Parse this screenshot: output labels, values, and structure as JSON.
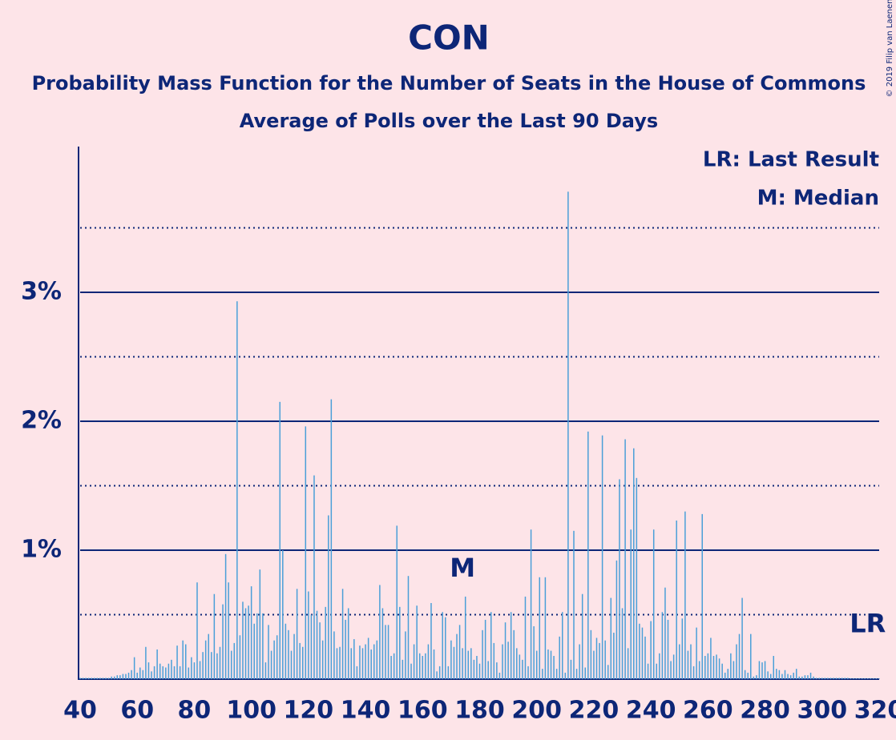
{
  "chart_data": {
    "type": "bar",
    "title": "CON",
    "subtitle": "Probability Mass Function for the Number of Seats in the House of Commons",
    "subtitle2": "Average of Polls over the Last 90 Days",
    "legend": [
      "LR: Last Result",
      "M: Median"
    ],
    "copyright": "© 2019 Filip van Laenen",
    "color": "#4a9fd8",
    "x": [
      40,
      41,
      42,
      43,
      44,
      45,
      46,
      47,
      48,
      49,
      50,
      51,
      52,
      53,
      54,
      55,
      56,
      57,
      58,
      59,
      60,
      61,
      62,
      63,
      64,
      65,
      66,
      67,
      68,
      69,
      70,
      71,
      72,
      73,
      74,
      75,
      76,
      77,
      78,
      79,
      80,
      81,
      82,
      83,
      84,
      85,
      86,
      87,
      88,
      89,
      90,
      91,
      92,
      93,
      94,
      95,
      96,
      97,
      98,
      99,
      100,
      101,
      102,
      103,
      104,
      105,
      106,
      107,
      108,
      109,
      110,
      111,
      112,
      113,
      114,
      115,
      116,
      117,
      118,
      119,
      120,
      121,
      122,
      123,
      124,
      125,
      126,
      127,
      128,
      129,
      130,
      131,
      132,
      133,
      134,
      135,
      136,
      137,
      138,
      139,
      140,
      141,
      142,
      143,
      144,
      145,
      146,
      147,
      148,
      149,
      150,
      151,
      152,
      153,
      154,
      155,
      156,
      157,
      158,
      159,
      160,
      161,
      162,
      163,
      164,
      165,
      166,
      167,
      168,
      169,
      170,
      171,
      172,
      173,
      174,
      175,
      176,
      177,
      178,
      179,
      180,
      181,
      182,
      183,
      184,
      185,
      186,
      187,
      188,
      189,
      190,
      191,
      192,
      193,
      194,
      195,
      196,
      197,
      198,
      199,
      200,
      201,
      202,
      203,
      204,
      205,
      206,
      207,
      208,
      209,
      210,
      211,
      212,
      213,
      214,
      215,
      216,
      217,
      218,
      219,
      220,
      221,
      222,
      223,
      224,
      225,
      226,
      227,
      228,
      229,
      230,
      231,
      232,
      233,
      234,
      235,
      236,
      237,
      238,
      239,
      240,
      241,
      242,
      243,
      244,
      245,
      246,
      247,
      248,
      249,
      250,
      251,
      252,
      253,
      254,
      255,
      256,
      257,
      258,
      259,
      260,
      261,
      262,
      263,
      264,
      265,
      266,
      267,
      268,
      269,
      270,
      271,
      272,
      273,
      274,
      275,
      276,
      277,
      278,
      279,
      280,
      281,
      282,
      283,
      284,
      285,
      286,
      287,
      288,
      289,
      290,
      291,
      292,
      293,
      294,
      295,
      296,
      297,
      298,
      299,
      300,
      301,
      302,
      303,
      304,
      305,
      306,
      307,
      308,
      309,
      310,
      311,
      312,
      313,
      314,
      315,
      316,
      317,
      318,
      319,
      320
    ],
    "values": [
      0.01,
      0.01,
      0.01,
      0.01,
      0.01,
      0.01,
      0.01,
      0.01,
      0.01,
      0.01,
      0.01,
      0.02,
      0.02,
      0.03,
      0.03,
      0.04,
      0.04,
      0.05,
      0.07,
      0.17,
      0.05,
      0.09,
      0.07,
      0.25,
      0.13,
      0.06,
      0.1,
      0.23,
      0.12,
      0.1,
      0.09,
      0.12,
      0.15,
      0.1,
      0.26,
      0.1,
      0.3,
      0.27,
      0.09,
      0.17,
      0.13,
      0.75,
      0.14,
      0.21,
      0.3,
      0.35,
      0.21,
      0.66,
      0.2,
      0.25,
      0.58,
      0.97,
      0.75,
      0.22,
      0.28,
      2.93,
      0.34,
      0.6,
      0.55,
      0.57,
      0.72,
      0.43,
      0.51,
      0.85,
      0.51,
      0.13,
      0.42,
      0.22,
      0.3,
      0.34,
      2.15,
      1.0,
      0.43,
      0.38,
      0.22,
      0.35,
      0.7,
      0.28,
      0.25,
      1.96,
      0.68,
      0.5,
      1.58,
      0.53,
      0.44,
      0.3,
      0.56,
      1.27,
      2.17,
      0.37,
      0.24,
      0.25,
      0.7,
      0.46,
      0.55,
      0.24,
      0.31,
      0.1,
      0.26,
      0.24,
      0.27,
      0.32,
      0.23,
      0.27,
      0.3,
      0.73,
      0.55,
      0.42,
      0.42,
      0.18,
      0.2,
      1.19,
      0.56,
      0.15,
      0.37,
      0.8,
      0.12,
      0.27,
      0.57,
      0.2,
      0.18,
      0.2,
      0.27,
      0.59,
      0.23,
      0.06,
      0.1,
      0.52,
      0.48,
      0.1,
      0.3,
      0.25,
      0.35,
      0.42,
      0.24,
      0.64,
      0.22,
      0.24,
      0.15,
      0.18,
      0.12,
      0.38,
      0.46,
      0.14,
      0.52,
      0.28,
      0.13,
      0.05,
      0.27,
      0.44,
      0.29,
      0.52,
      0.38,
      0.24,
      0.19,
      0.15,
      0.64,
      0.1,
      1.16,
      0.41,
      0.22,
      0.79,
      0.08,
      0.79,
      0.23,
      0.22,
      0.18,
      0.08,
      0.33,
      0.52,
      0.05,
      3.78,
      0.15,
      1.15,
      0.08,
      0.27,
      0.66,
      0.09,
      1.92,
      0.38,
      0.22,
      0.32,
      0.28,
      1.89,
      0.3,
      0.11,
      0.63,
      0.36,
      0.92,
      1.55,
      0.55,
      1.86,
      0.24,
      1.16,
      1.79,
      1.56,
      0.43,
      0.4,
      0.33,
      0.12,
      0.45,
      1.16,
      0.12,
      0.2,
      0.52,
      0.71,
      0.46,
      0.14,
      0.19,
      1.23,
      0.27,
      0.47,
      1.3,
      0.22,
      0.27,
      0.1,
      0.4,
      0.14,
      1.28,
      0.18,
      0.2,
      0.32,
      0.18,
      0.19,
      0.16,
      0.12,
      0.05,
      0.08,
      0.2,
      0.14,
      0.27,
      0.35,
      0.63,
      0.07,
      0.05,
      0.35,
      0.02,
      0.03,
      0.14,
      0.13,
      0.14,
      0.06,
      0.04,
      0.18,
      0.08,
      0.07,
      0.04,
      0.07,
      0.04,
      0.03,
      0.05,
      0.08,
      0.02,
      0.02,
      0.03,
      0.03,
      0.05,
      0.02,
      0.01,
      0.01,
      0.01,
      0.01,
      0.01,
      0.01,
      0.01,
      0.01,
      0.01,
      0.01,
      0.01,
      0.01,
      0.005,
      0.005,
      0.005,
      0.005,
      0.005,
      0.005,
      0.005,
      0.005,
      0.005,
      0.005,
      0.005
    ],
    "xlim": [
      40,
      320
    ],
    "ylim": [
      0,
      4.13
    ],
    "xticks": [
      40,
      60,
      80,
      100,
      120,
      140,
      160,
      180,
      200,
      220,
      240,
      260,
      280,
      300,
      320
    ],
    "yticks": [
      {
        "value": 1,
        "label": "1%"
      },
      {
        "value": 2,
        "label": "2%"
      },
      {
        "value": 3,
        "label": "3%"
      }
    ],
    "minor_yticks": [
      0.5,
      1.5,
      2.5,
      3.5
    ],
    "annotations": [
      {
        "text": "M",
        "x": 174,
        "y": 0.85
      },
      {
        "text": "LR",
        "x": 316,
        "y": 0.42
      }
    ]
  }
}
